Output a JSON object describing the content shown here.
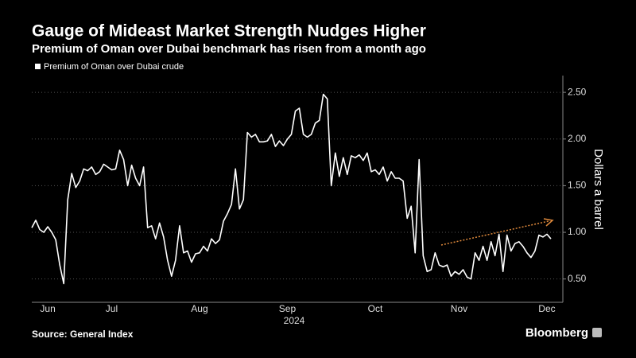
{
  "chart_data": {
    "type": "line",
    "title": "Gauge of Mideast Market Strength Nudges Higher",
    "subtitle": "Premium of Oman over Dubai benchmark has risen from a month ago",
    "ylabel": "Dollars a barrel",
    "xlabel": "2024",
    "source": "Source: General Index",
    "brand": "Bloomberg",
    "grid": true,
    "legend": "top-left",
    "categories": [
      null,
      null,
      null,
      null,
      "Jun",
      null,
      null,
      null,
      null,
      null,
      null,
      null,
      null,
      null,
      null,
      null,
      null,
      null,
      null,
      null,
      "Jul",
      null,
      null,
      null,
      null,
      null,
      null,
      null,
      null,
      null,
      null,
      null,
      null,
      null,
      null,
      null,
      null,
      null,
      null,
      null,
      null,
      null,
      "Aug",
      null,
      null,
      null,
      null,
      null,
      null,
      null,
      null,
      null,
      null,
      null,
      null,
      null,
      null,
      null,
      null,
      null,
      null,
      null,
      null,
      null,
      "Sep",
      null,
      null,
      null,
      null,
      null,
      null,
      null,
      null,
      null,
      null,
      null,
      null,
      null,
      null,
      null,
      null,
      null,
      null,
      null,
      null,
      null,
      "Oct",
      null,
      null,
      null,
      null,
      null,
      null,
      null,
      null,
      null,
      null,
      null,
      null,
      null,
      null,
      null,
      null,
      null,
      null,
      null,
      null,
      "Nov",
      null,
      null,
      null,
      null,
      null,
      null,
      null,
      null,
      null,
      null,
      null,
      null,
      null,
      null,
      null,
      null,
      null,
      null,
      null,
      null,
      null,
      "Dec",
      null
    ],
    "series": [
      {
        "name": "Premium of Oman over Dubai crude",
        "color": "#ffffff",
        "values": [
          1.05,
          1.13,
          1.03,
          1.0,
          1.06,
          1.0,
          0.92,
          0.65,
          0.45,
          1.35,
          1.63,
          1.48,
          1.55,
          1.68,
          1.66,
          1.7,
          1.62,
          1.65,
          1.73,
          1.7,
          1.67,
          1.68,
          1.88,
          1.78,
          1.5,
          1.72,
          1.58,
          1.5,
          1.7,
          1.05,
          1.07,
          0.93,
          1.1,
          0.95,
          0.7,
          0.53,
          0.7,
          1.07,
          0.78,
          0.8,
          0.68,
          0.77,
          0.78,
          0.85,
          0.8,
          0.93,
          0.88,
          0.92,
          1.12,
          1.2,
          1.3,
          1.68,
          1.25,
          1.35,
          2.07,
          2.02,
          2.05,
          1.97,
          1.97,
          1.98,
          2.05,
          1.92,
          1.98,
          1.93,
          2.0,
          2.05,
          2.3,
          2.33,
          2.05,
          2.02,
          2.05,
          2.17,
          2.2,
          2.48,
          2.43,
          1.5,
          1.85,
          1.6,
          1.8,
          1.62,
          1.82,
          1.8,
          1.83,
          1.77,
          1.85,
          1.65,
          1.67,
          1.62,
          1.7,
          1.55,
          1.65,
          1.58,
          1.58,
          1.55,
          1.15,
          1.28,
          0.78,
          1.78,
          0.75,
          0.58,
          0.6,
          0.78,
          0.65,
          0.63,
          0.65,
          0.53,
          0.58,
          0.55,
          0.6,
          0.52,
          0.5,
          0.78,
          0.7,
          0.85,
          0.7,
          0.9,
          0.75,
          0.98,
          0.58,
          0.97,
          0.8,
          0.88,
          0.9,
          0.85,
          0.78,
          0.73,
          0.8,
          0.97,
          0.95,
          0.98,
          0.93
        ]
      }
    ],
    "ylim": [
      0.25,
      2.68
    ],
    "yticks": [
      {
        "value": 0.5,
        "label": "0.50"
      },
      {
        "value": 1.0,
        "label": "1.00"
      },
      {
        "value": 1.5,
        "label": "1.50"
      },
      {
        "value": 2.0,
        "label": "2.00"
      },
      {
        "value": 2.5,
        "label": "2.50"
      }
    ]
  }
}
